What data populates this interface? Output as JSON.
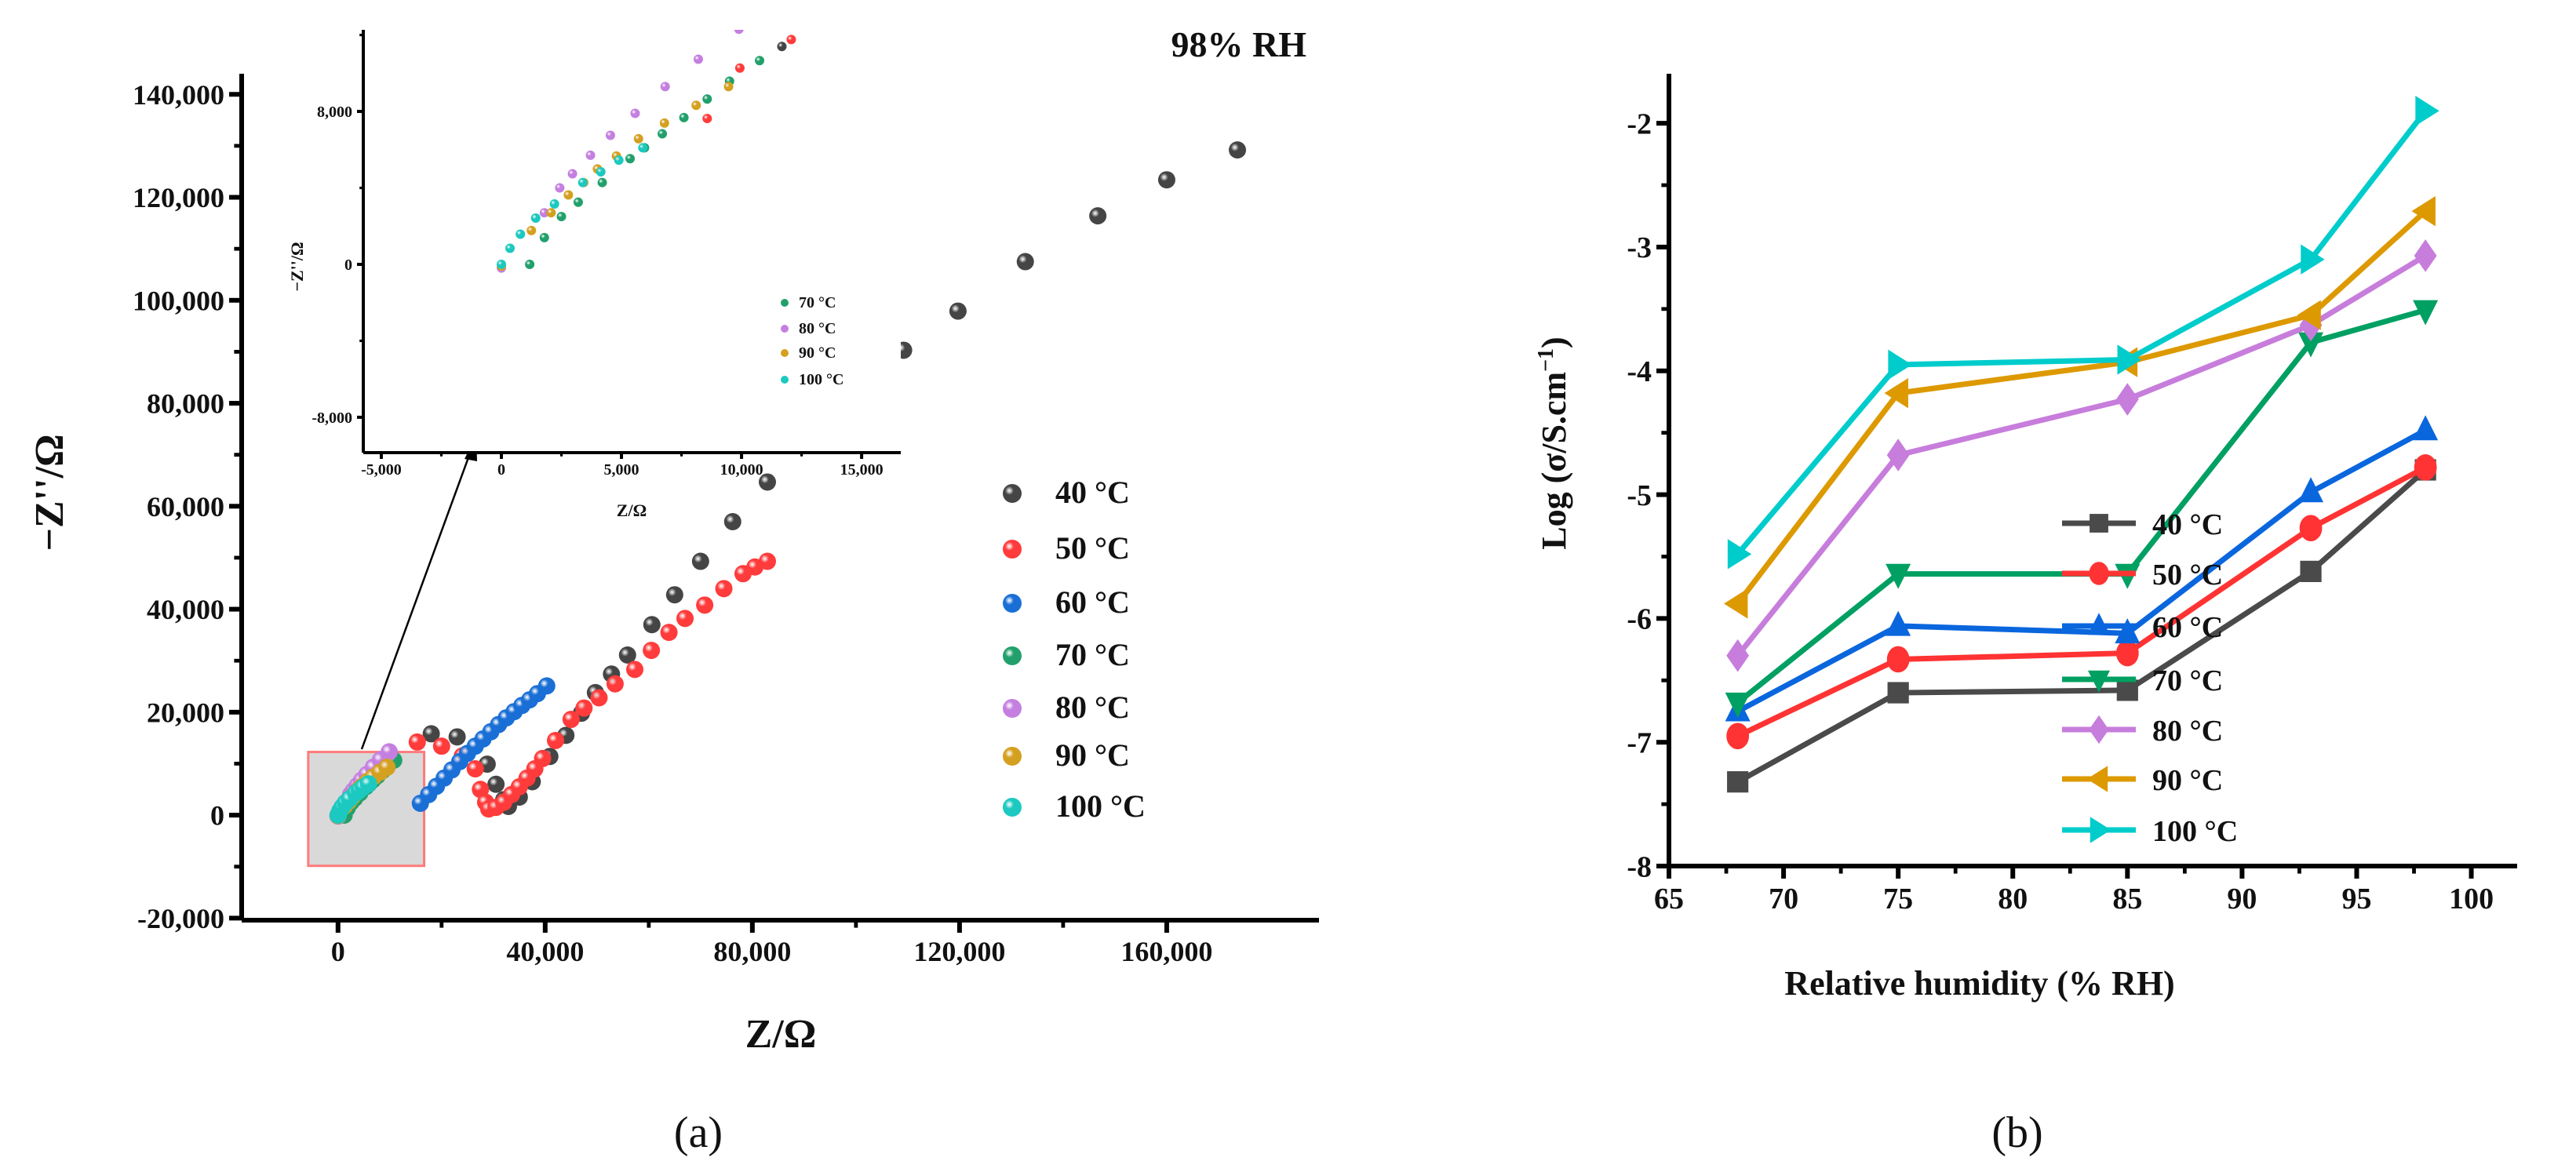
{
  "chart_data": [
    {
      "panel_label": "(a)",
      "type": "scatter",
      "title": "98% RH",
      "xlabel": "Z/Ω",
      "ylabel": "−Z''/Ω",
      "xlim": [
        -18600,
        189400
      ],
      "ylim": [
        -20400,
        144000
      ],
      "xticks": [
        0,
        40000,
        80000,
        120000,
        160000
      ],
      "xtick_labels": [
        "0",
        "40,000",
        "80,000",
        "120,000",
        "160,000"
      ],
      "yticks": [
        -20000,
        0,
        20000,
        40000,
        60000,
        80000,
        100000,
        120000,
        140000
      ],
      "ytick_labels": [
        "-20,000",
        "0",
        "20,000",
        "40,000",
        "60,000",
        "80,000",
        "100,000",
        "120,000",
        "140,000"
      ],
      "legend_position": "right",
      "series": [
        {
          "name": "40 °C",
          "color": "#454545",
          "points": [
            [
              18000,
              15800
            ],
            [
              23000,
              15200
            ],
            [
              28800,
              9900
            ],
            [
              30500,
              6000
            ],
            [
              32000,
              3000
            ],
            [
              32900,
              1700
            ],
            [
              35000,
              3500
            ],
            [
              37500,
              6500
            ],
            [
              40900,
              11400
            ],
            [
              44000,
              15500
            ],
            [
              47000,
              19800
            ],
            [
              49700,
              23800
            ],
            [
              52800,
              27400
            ],
            [
              55900,
              31100
            ],
            [
              60600,
              37000
            ],
            [
              65000,
              42800
            ],
            [
              70000,
              49300
            ],
            [
              76200,
              57000
            ],
            [
              82900,
              64700
            ],
            [
              91100,
              73700
            ],
            [
              100900,
              83600
            ],
            [
              109200,
              90300
            ],
            [
              119700,
              97900
            ],
            [
              132700,
              107500
            ],
            [
              146700,
              116400
            ],
            [
              160000,
              123400
            ],
            [
              173650,
              129200
            ]
          ]
        },
        {
          "name": "50 °C",
          "color": "#ff3b3b",
          "points": [
            [
              15300,
              14200
            ],
            [
              20000,
              13400
            ],
            [
              24000,
              11500
            ],
            [
              26500,
              9000
            ],
            [
              27500,
              5000
            ],
            [
              28500,
              2500
            ],
            [
              29100,
              1200
            ],
            [
              30500,
              1500
            ],
            [
              32000,
              2500
            ],
            [
              33500,
              4000
            ],
            [
              35000,
              5500
            ],
            [
              36500,
              7200
            ],
            [
              38000,
              9000
            ],
            [
              39500,
              11000
            ],
            [
              42000,
              14500
            ],
            [
              45000,
              18600
            ],
            [
              47500,
              20800
            ],
            [
              50400,
              22800
            ],
            [
              53500,
              25500
            ],
            [
              57300,
              28300
            ],
            [
              60500,
              32000
            ],
            [
              63900,
              35500
            ],
            [
              67000,
              38200
            ],
            [
              70800,
              40800
            ],
            [
              74500,
              44000
            ],
            [
              78200,
              46900
            ],
            [
              80500,
              48200
            ],
            [
              82900,
              49300
            ]
          ]
        },
        {
          "name": "60 °C",
          "color": "#1a6fd6",
          "points": [
            [
              15900,
              2300
            ],
            [
              17500,
              4000
            ],
            [
              19000,
              5600
            ],
            [
              20500,
              7200
            ],
            [
              22000,
              8800
            ],
            [
              23500,
              10400
            ],
            [
              25000,
              12000
            ],
            [
              26500,
              13400
            ],
            [
              28000,
              14800
            ],
            [
              29500,
              16200
            ],
            [
              31000,
              17600
            ],
            [
              32500,
              18900
            ],
            [
              34000,
              20100
            ],
            [
              35500,
              21300
            ],
            [
              37000,
              22400
            ],
            [
              38500,
              23600
            ],
            [
              40300,
              25100
            ]
          ]
        },
        {
          "name": "70 °C",
          "color": "#22a06b",
          "points": [
            [
              1180,
              0
            ],
            [
              1790,
              1400
            ],
            [
              2500,
              2500
            ],
            [
              3200,
              3250
            ],
            [
              4200,
              4280
            ],
            [
              5360,
              5530
            ],
            [
              5960,
              6100
            ],
            [
              6700,
              6830
            ],
            [
              7600,
              7680
            ],
            [
              8570,
              8650
            ],
            [
              9500,
              9580
            ],
            [
              10750,
              10660
            ]
          ]
        },
        {
          "name": "80 °C",
          "color": "#c47fe0",
          "points": [
            [
              0,
              -190
            ],
            [
              1790,
              2700
            ],
            [
              2430,
              4000
            ],
            [
              2960,
              4740
            ],
            [
              3710,
              5710
            ],
            [
              4540,
              6750
            ],
            [
              5570,
              7900
            ],
            [
              6820,
              9300
            ],
            [
              8200,
              10730
            ],
            [
              9890,
              12300
            ]
          ]
        },
        {
          "name": "90 °C",
          "color": "#d4a020",
          "points": [
            [
              0,
              -90
            ],
            [
              1250,
              1770
            ],
            [
              2070,
              2700
            ],
            [
              2790,
              3630
            ],
            [
              3430,
              4280
            ],
            [
              4000,
              4990
            ],
            [
              4790,
              5670
            ],
            [
              5710,
              6570
            ],
            [
              6790,
              7390
            ],
            [
              8110,
              8320
            ],
            [
              9460,
              9300
            ]
          ]
        },
        {
          "name": "100 °C",
          "color": "#1cc9c0",
          "points": [
            [
              0,
              0
            ],
            [
              360,
              840
            ],
            [
              790,
              1580
            ],
            [
              1430,
              2420
            ],
            [
              2210,
              3160
            ],
            [
              3390,
              4280
            ],
            [
              4140,
              4840
            ],
            [
              4890,
              5450
            ],
            [
              5890,
              6100
            ]
          ]
        }
      ],
      "inset": {
        "type": "scatter",
        "xlabel": "Z/Ω",
        "ylabel": "−Z''/Ω",
        "xlim": [
          -5750,
          16630
        ],
        "ylim": [
          -9850,
          12270
        ],
        "xticks": [
          -5000,
          0,
          5000,
          10000,
          15000
        ],
        "xtick_labels": [
          "-5,000",
          "0",
          "5,000",
          "10,000",
          "15,000"
        ],
        "yticks": [
          -8000,
          0,
          8000
        ],
        "ytick_labels": [
          "-8,000",
          "0",
          "8,000"
        ],
        "legend": [
          "70 °C",
          "80 °C",
          "90 °C",
          "100 °C"
        ],
        "extra_points": [
          {
            "name": "40 °C",
            "color": "#454545",
            "points": [
              [
                11680,
                11400
              ]
            ]
          },
          {
            "name": "50 °C",
            "color": "#ff3b3b",
            "points": [
              [
                8570,
                7630
              ],
              [
                9930,
                10270
              ],
              [
                12070,
                11760
              ]
            ]
          }
        ]
      }
    },
    {
      "panel_label": "(b)",
      "type": "line",
      "xlabel": "Relative humidity (% RH)",
      "ylabel": "Log (σ/S.cm",
      "ylabel_sup": "−1",
      "ylabel_close": ")",
      "xlim": [
        65,
        102
      ],
      "ylim": [
        -8,
        -1.6
      ],
      "xticks": [
        65,
        70,
        75,
        80,
        85,
        90,
        95,
        100
      ],
      "xtick_labels": [
        "65",
        "70",
        "75",
        "80",
        "85",
        "90",
        "95",
        "100"
      ],
      "yticks": [
        -8,
        -7,
        -6,
        -5,
        -4,
        -3,
        -2
      ],
      "ytick_labels": [
        "-8",
        "-7",
        "-6",
        "-5",
        "-4",
        "-3",
        "-2"
      ],
      "legend_position": "bottom-right",
      "x": [
        68,
        75,
        85,
        93,
        98
      ],
      "series": [
        {
          "name": "40 °C",
          "color": "#4a4a4a",
          "marker": "square",
          "values": [
            -7.32,
            -6.6,
            -6.58,
            -5.62,
            -4.8
          ]
        },
        {
          "name": "50 °C",
          "color": "#ff3333",
          "marker": "circle",
          "values": [
            -6.95,
            -6.33,
            -6.28,
            -5.27,
            -4.78
          ]
        },
        {
          "name": "60 °C",
          "color": "#0a66dd",
          "marker": "triangle-up",
          "values": [
            -6.75,
            -6.06,
            -6.12,
            -4.98,
            -4.48
          ]
        },
        {
          "name": "70 °C",
          "color": "#00a062",
          "marker": "triangle-down",
          "values": [
            -6.68,
            -5.64,
            -5.64,
            -3.77,
            -3.51
          ]
        },
        {
          "name": "80 °C",
          "color": "#c77ddb",
          "marker": "diamond",
          "values": [
            -6.3,
            -4.68,
            -4.23,
            -3.63,
            -3.07
          ]
        },
        {
          "name": "90 °C",
          "color": "#dd9900",
          "marker": "triangle-left",
          "values": [
            -5.88,
            -4.18,
            -3.93,
            -3.55,
            -2.71
          ]
        },
        {
          "name": "100 °C",
          "color": "#00cccc",
          "marker": "triangle-right",
          "values": [
            -5.48,
            -3.95,
            -3.91,
            -3.1,
            -1.9
          ]
        }
      ]
    }
  ]
}
